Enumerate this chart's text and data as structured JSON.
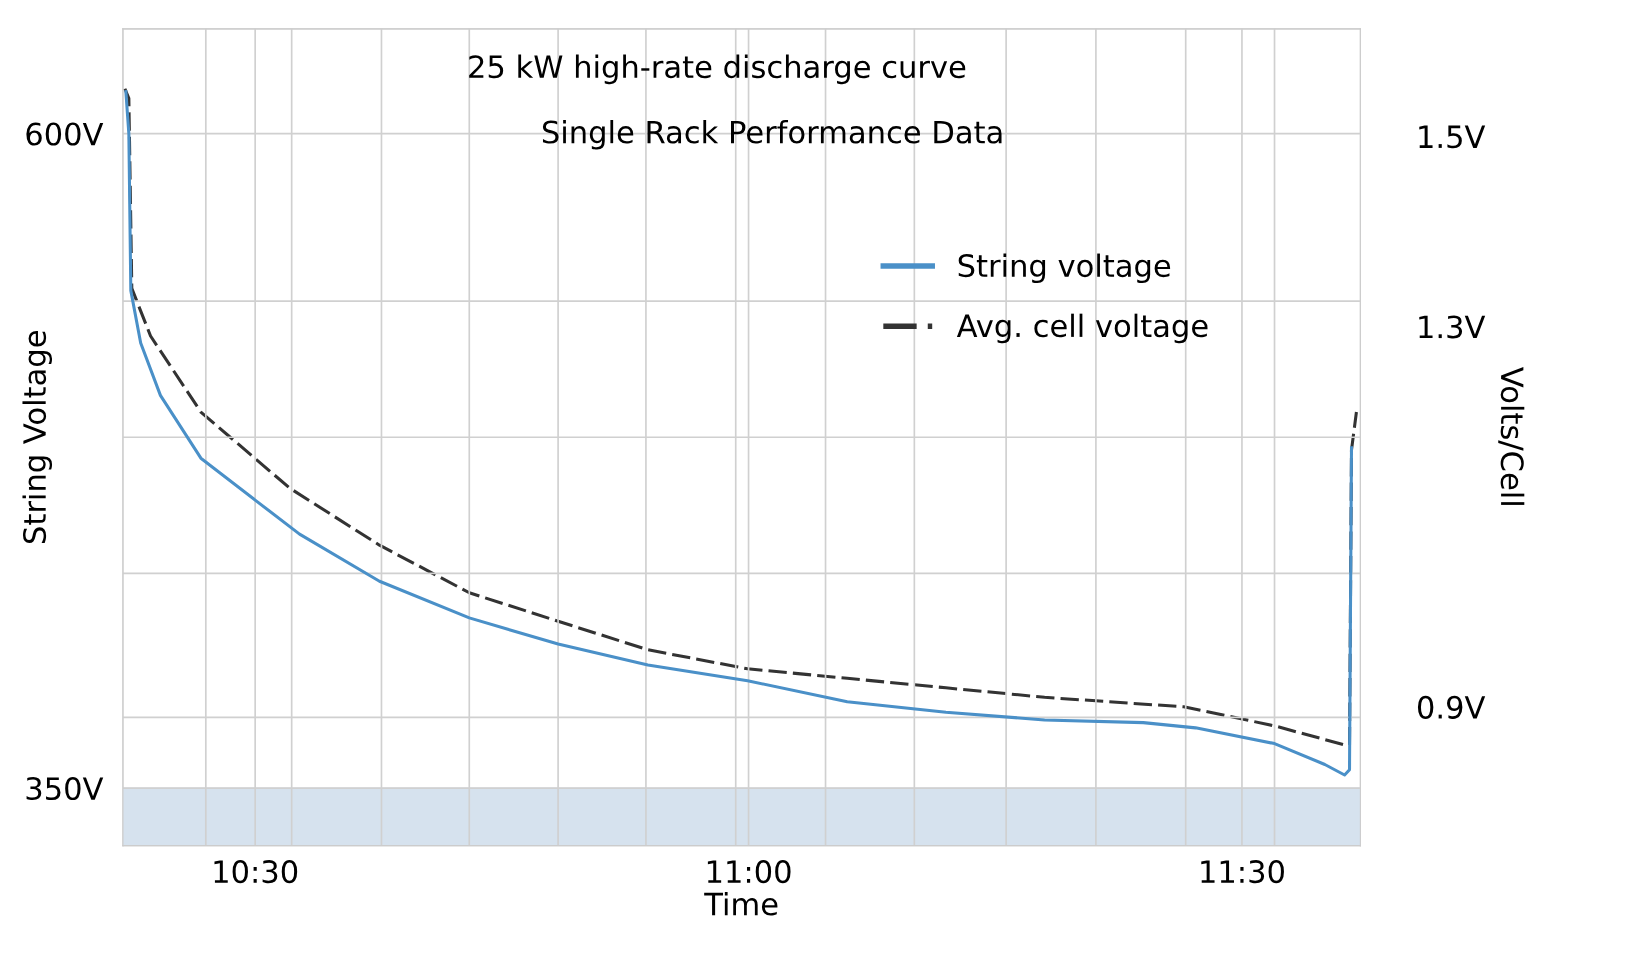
{
  "chart_data": {
    "type": "line",
    "title": "25 kW high-rate discharge curve",
    "subtitle": "Single Rack Performance Data",
    "xlabel": "Time",
    "ylabel": "String Voltage",
    "y2label": "Volts/Cell",
    "xlim": [
      10.366,
      11.62
    ],
    "ylim": [
      328,
      640
    ],
    "y2lim": [
      0.754,
      1.613
    ],
    "xticks": [
      {
        "value": 10.45,
        "label": null
      },
      {
        "value": 10.5,
        "label": "10:30"
      },
      {
        "value": 10.537,
        "label": null
      },
      {
        "value": 10.628,
        "label": null
      },
      {
        "value": 10.717,
        "label": null
      },
      {
        "value": 10.807,
        "label": null
      },
      {
        "value": 10.896,
        "label": null
      },
      {
        "value": 10.987,
        "label": null
      },
      {
        "value": 11.0,
        "label": "11:00"
      },
      {
        "value": 11.078,
        "label": null
      },
      {
        "value": 11.168,
        "label": null
      },
      {
        "value": 11.261,
        "label": null
      },
      {
        "value": 11.352,
        "label": null
      },
      {
        "value": 11.443,
        "label": null
      },
      {
        "value": 11.5,
        "label": "11:30"
      },
      {
        "value": 11.533,
        "label": null
      }
    ],
    "yticks": [
      {
        "value": 350,
        "label": "350V"
      },
      {
        "value": 377,
        "label": null
      },
      {
        "value": 432,
        "label": null
      },
      {
        "value": 484,
        "label": null
      },
      {
        "value": 536,
        "label": null
      },
      {
        "value": 600,
        "label": "600V"
      }
    ],
    "y2ticks": [
      {
        "value": 0.9,
        "label": "0.9V"
      },
      {
        "value": 1.3,
        "label": "1.3V"
      },
      {
        "value": 1.5,
        "label": "1.5V"
      }
    ],
    "grid": true,
    "legend": "right",
    "bands": [
      {
        "axis": "y",
        "from": 328,
        "to": 350,
        "color": "#d6e2ee"
      }
    ],
    "series": [
      {
        "name": "String voltage",
        "color": "#4a90c8",
        "line_style": "solid",
        "x": [
          10.369,
          10.372,
          10.374,
          10.384,
          10.404,
          10.445,
          10.5,
          10.545,
          10.626,
          10.717,
          10.807,
          10.898,
          10.999,
          11.1,
          11.2,
          11.3,
          11.4,
          11.453,
          11.533,
          11.584,
          11.604,
          11.609,
          11.611
        ],
        "values": [
          616,
          600,
          540,
          520,
          500,
          476,
          460,
          447,
          429,
          415,
          405,
          397,
          391,
          383,
          379,
          376,
          375,
          373,
          367,
          359,
          355,
          357,
          480
        ]
      },
      {
        "name": "Avg. cell voltage",
        "color": "#333333",
        "line_style": "dashed",
        "axis": "y2",
        "x": [
          10.368,
          10.372,
          10.375,
          10.394,
          10.445,
          10.535,
          10.626,
          10.717,
          10.807,
          10.898,
          10.999,
          11.1,
          11.2,
          11.3,
          11.441,
          11.533,
          11.604,
          11.609,
          11.611,
          11.616
        ],
        "values": [
          1.55,
          1.54,
          1.34,
          1.29,
          1.21,
          1.13,
          1.07,
          1.02,
          0.99,
          0.96,
          0.94,
          0.93,
          0.92,
          0.91,
          0.9,
          0.88,
          0.86,
          0.86,
          1.17,
          1.21
        ]
      }
    ]
  }
}
